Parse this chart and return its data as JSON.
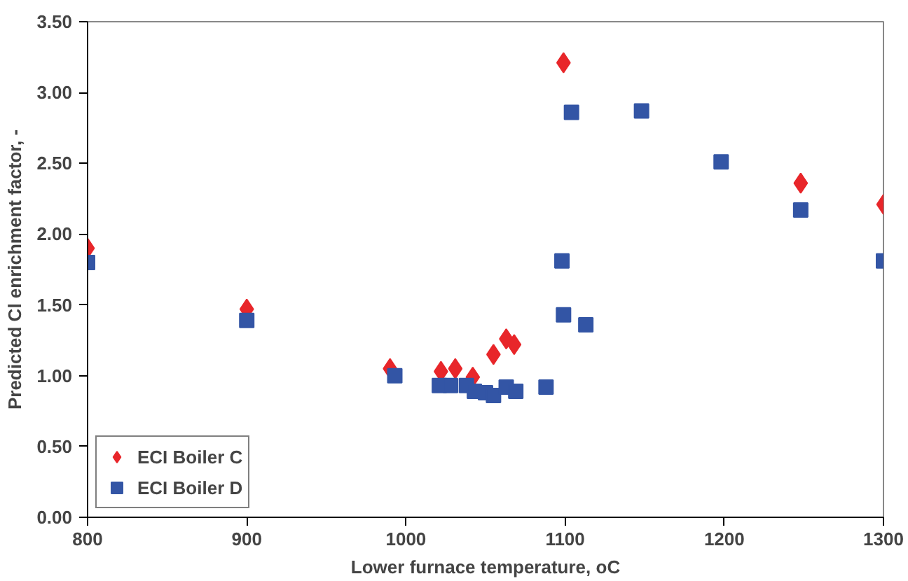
{
  "chart_data": {
    "type": "scatter",
    "xlabel": "Lower furnace temperature, oC",
    "ylabel": "Predicted Cl enrichment factor, -",
    "xlim": [
      800,
      1300
    ],
    "xticks": [
      800,
      900,
      1000,
      1100,
      1200,
      1300
    ],
    "ylim": [
      0,
      3.5
    ],
    "yticks": [
      {
        "value": 0,
        "label": "0.00"
      },
      {
        "value": 0.5,
        "label": "0.50"
      },
      {
        "value": 1,
        "label": "1.00"
      },
      {
        "value": 1.5,
        "label": "1.50"
      },
      {
        "value": 2,
        "label": "2.00"
      },
      {
        "value": 2.5,
        "label": "2.50"
      },
      {
        "value": 3,
        "label": "3.00"
      },
      {
        "value": 3.5,
        "label": "3.50"
      }
    ],
    "grid": false,
    "legend": "bottom left",
    "series": [
      {
        "name": "ECI Boiler C",
        "color": "#e8262a",
        "marker": "diamond",
        "x": [
          800,
          900,
          990,
          1022,
          1031,
          1042,
          1055,
          1063,
          1068,
          1099,
          1148,
          1199,
          1248,
          1300
        ],
        "values": [
          1.9,
          1.47,
          1.05,
          1.03,
          1.05,
          0.99,
          1.15,
          1.26,
          1.22,
          3.21,
          null,
          null,
          2.36,
          2.21
        ]
      },
      {
        "name": "ECI Boiler D",
        "color": "#3355a5",
        "marker": "square",
        "x": [
          800,
          900,
          993,
          1021,
          1028,
          1038,
          1043,
          1050,
          1055,
          1063,
          1069,
          1088,
          1098,
          1099,
          1104,
          1113,
          1148,
          1198,
          1248,
          1300
        ],
        "values": [
          1.8,
          1.39,
          1.0,
          0.93,
          0.93,
          0.93,
          0.89,
          0.88,
          0.86,
          0.92,
          0.89,
          0.92,
          1.81,
          1.43,
          2.86,
          1.36,
          2.87,
          2.51,
          2.17,
          1.81
        ]
      }
    ]
  }
}
